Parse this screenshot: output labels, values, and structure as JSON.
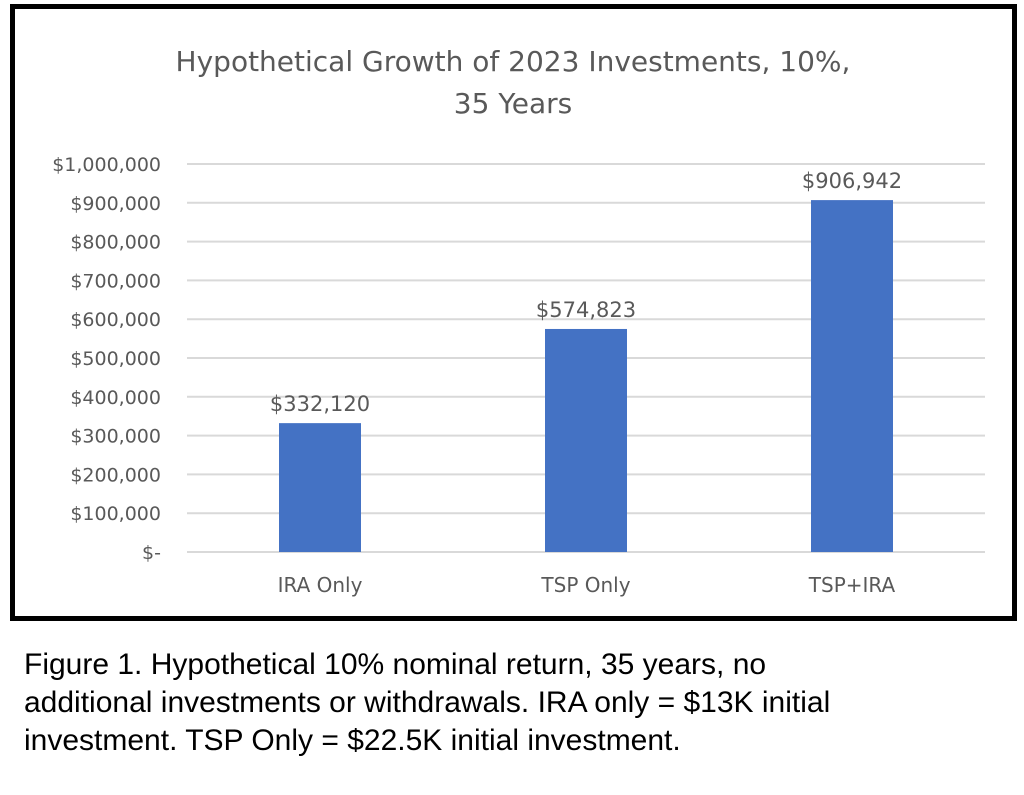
{
  "chart_data": {
    "type": "bar",
    "title_lines": [
      "Hypothetical Growth of 2023 Investments, 10%,",
      "35 Years"
    ],
    "categories": [
      "IRA Only",
      "TSP Only",
      "TSP+IRA"
    ],
    "values": [
      332120,
      574823,
      906942
    ],
    "data_labels": [
      "$332,120",
      "$574,823",
      "$906,942"
    ],
    "y_ticks": [
      0,
      100000,
      200000,
      300000,
      400000,
      500000,
      600000,
      700000,
      800000,
      900000,
      1000000
    ],
    "y_tick_labels": [
      "$-",
      "$100,000",
      "$200,000",
      "$300,000",
      "$400,000",
      "$500,000",
      "$600,000",
      "$700,000",
      "$800,000",
      "$900,000",
      "$1,000,000"
    ],
    "ylim": [
      0,
      1000000
    ],
    "grid": true,
    "legend": "none",
    "bar_color": "#4472C4"
  },
  "caption": {
    "lines": [
      "Figure 1. Hypothetical 10% nominal return, 35 years, no",
      "additional investments or withdrawals. IRA only = $13K initial",
      "investment. TSP Only = $22.5K initial investment."
    ]
  }
}
